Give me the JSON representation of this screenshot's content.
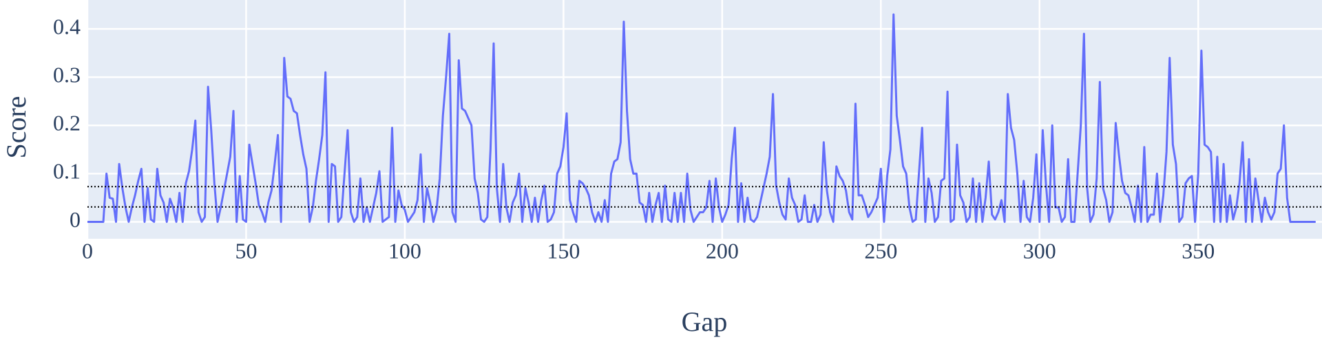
{
  "chart_data": {
    "type": "line",
    "x_label": "Gap",
    "y_label": "Score",
    "xlim": [
      0,
      389
    ],
    "ylim": [
      -0.035,
      0.46
    ],
    "xticks": [
      0,
      50,
      100,
      150,
      200,
      250,
      300,
      350
    ],
    "yticks": [
      0,
      0.1,
      0.2,
      0.3,
      0.4
    ],
    "grid": true,
    "hlines": [
      0.073,
      0.031
    ],
    "x": [
      0,
      1,
      2,
      3,
      4,
      5,
      6,
      7,
      8,
      9,
      10,
      11,
      12,
      13,
      14,
      15,
      16,
      17,
      18,
      19,
      20,
      21,
      22,
      23,
      24,
      25,
      26,
      27,
      28,
      29,
      30,
      31,
      32,
      33,
      34,
      35,
      36,
      37,
      38,
      39,
      40,
      41,
      42,
      43,
      44,
      45,
      46,
      47,
      48,
      49,
      50,
      51,
      52,
      53,
      54,
      55,
      56,
      57,
      58,
      59,
      60,
      61,
      62,
      63,
      64,
      65,
      66,
      67,
      68,
      69,
      70,
      71,
      72,
      73,
      74,
      75,
      76,
      77,
      78,
      79,
      80,
      81,
      82,
      83,
      84,
      85,
      86,
      87,
      88,
      89,
      90,
      91,
      92,
      93,
      94,
      95,
      96,
      97,
      98,
      99,
      100,
      101,
      102,
      103,
      104,
      105,
      106,
      107,
      108,
      109,
      110,
      111,
      112,
      113,
      114,
      115,
      116,
      117,
      118,
      119,
      120,
      121,
      122,
      123,
      124,
      125,
      126,
      127,
      128,
      129,
      130,
      131,
      132,
      133,
      134,
      135,
      136,
      137,
      138,
      139,
      140,
      141,
      142,
      143,
      144,
      145,
      146,
      147,
      148,
      149,
      150,
      151,
      152,
      153,
      154,
      155,
      156,
      157,
      158,
      159,
      160,
      161,
      162,
      163,
      164,
      165,
      166,
      167,
      168,
      169,
      170,
      171,
      172,
      173,
      174,
      175,
      176,
      177,
      178,
      179,
      180,
      181,
      182,
      183,
      184,
      185,
      186,
      187,
      188,
      189,
      190,
      191,
      192,
      193,
      194,
      195,
      196,
      197,
      198,
      199,
      200,
      201,
      202,
      203,
      204,
      205,
      206,
      207,
      208,
      209,
      210,
      211,
      212,
      213,
      214,
      215,
      216,
      217,
      218,
      219,
      220,
      221,
      222,
      223,
      224,
      225,
      226,
      227,
      228,
      229,
      230,
      231,
      232,
      233,
      234,
      235,
      236,
      237,
      238,
      239,
      240,
      241,
      242,
      243,
      244,
      245,
      246,
      247,
      248,
      249,
      250,
      251,
      252,
      253,
      254,
      255,
      256,
      257,
      258,
      259,
      260,
      261,
      262,
      263,
      264,
      265,
      266,
      267,
      268,
      269,
      270,
      271,
      272,
      273,
      274,
      275,
      276,
      277,
      278,
      279,
      280,
      281,
      282,
      283,
      284,
      285,
      286,
      287,
      288,
      289,
      290,
      291,
      292,
      293,
      294,
      295,
      296,
      297,
      298,
      299,
      300,
      301,
      302,
      303,
      304,
      305,
      306,
      307,
      308,
      309,
      310,
      311,
      312,
      313,
      314,
      315,
      316,
      317,
      318,
      319,
      320,
      321,
      322,
      323,
      324,
      325,
      326,
      327,
      328,
      329,
      330,
      331,
      332,
      333,
      334,
      335,
      336,
      337,
      338,
      339,
      340,
      341,
      342,
      343,
      344,
      345,
      346,
      347,
      348,
      349,
      350,
      351,
      352,
      353,
      354,
      355,
      356,
      357,
      358,
      359,
      360,
      361,
      362,
      363,
      364,
      365,
      366,
      367,
      368,
      369,
      370,
      371,
      372,
      373,
      374,
      375,
      376,
      377,
      378,
      379,
      380,
      381,
      382,
      383,
      384,
      385,
      386,
      387
    ],
    "series": [
      {
        "color": "#636efa",
        "values": [
          0,
          0,
          0,
          0,
          0,
          0,
          0.1,
          0.05,
          0.048,
          0,
          0.12,
          0.07,
          0.03,
          0,
          0.03,
          0.055,
          0.085,
          0.11,
          0,
          0.07,
          0.005,
          0,
          0.11,
          0.055,
          0.04,
          0,
          0.048,
          0.03,
          0,
          0.06,
          0,
          0.08,
          0.105,
          0.15,
          0.21,
          0.02,
          0,
          0.01,
          0.28,
          0.19,
          0.08,
          0,
          0.03,
          0.065,
          0.1,
          0.135,
          0.23,
          0,
          0.095,
          0.005,
          0,
          0.16,
          0.12,
          0.08,
          0.035,
          0.02,
          0,
          0.04,
          0.065,
          0.12,
          0.18,
          0,
          0.34,
          0.26,
          0.255,
          0.23,
          0.225,
          0.18,
          0.14,
          0.11,
          0,
          0.03,
          0.085,
          0.13,
          0.18,
          0.31,
          0,
          0.12,
          0.115,
          0,
          0.01,
          0.1,
          0.19,
          0.02,
          0,
          0.01,
          0.09,
          0,
          0.03,
          0,
          0.03,
          0.06,
          0.105,
          0,
          0.005,
          0.01,
          0.195,
          0,
          0.065,
          0.035,
          0.025,
          0,
          0.01,
          0.02,
          0.045,
          0.14,
          0,
          0.07,
          0.04,
          0,
          0.025,
          0.09,
          0.22,
          0.3,
          0.39,
          0.02,
          0,
          0.335,
          0.235,
          0.23,
          0.215,
          0.2,
          0.09,
          0.06,
          0.005,
          0,
          0.01,
          0.15,
          0.37,
          0.07,
          0,
          0.12,
          0.03,
          0,
          0.04,
          0.055,
          0.1,
          0,
          0.07,
          0.04,
          0,
          0.05,
          0,
          0.045,
          0.075,
          0,
          0.005,
          0.02,
          0.1,
          0.115,
          0.155,
          0.225,
          0.045,
          0.02,
          0,
          0.085,
          0.08,
          0.07,
          0.055,
          0.02,
          0,
          0.02,
          0,
          0.045,
          0,
          0.1,
          0.125,
          0.13,
          0.165,
          0.415,
          0.23,
          0.13,
          0.1,
          0.1,
          0.04,
          0.035,
          0,
          0.06,
          0,
          0.035,
          0.06,
          0,
          0.075,
          0.005,
          0,
          0.06,
          0,
          0.06,
          0,
          0.1,
          0.025,
          0,
          0.01,
          0.02,
          0.02,
          0.03,
          0.085,
          0,
          0.09,
          0.03,
          0,
          0.015,
          0.035,
          0.13,
          0.195,
          0,
          0.08,
          0,
          0.05,
          0.005,
          0,
          0.01,
          0.04,
          0.07,
          0.1,
          0.135,
          0.265,
          0.075,
          0.04,
          0.015,
          0.005,
          0.09,
          0.05,
          0.035,
          0,
          0.005,
          0.055,
          0,
          0,
          0.035,
          0,
          0.015,
          0.165,
          0.065,
          0.02,
          0,
          0.115,
          0.095,
          0.085,
          0.065,
          0.02,
          0.005,
          0.245,
          0.055,
          0.055,
          0.035,
          0.01,
          0.02,
          0.035,
          0.05,
          0.11,
          0,
          0.095,
          0.15,
          0.43,
          0.22,
          0.17,
          0.115,
          0.1,
          0.03,
          0,
          0.005,
          0.1,
          0.195,
          0,
          0.09,
          0.06,
          0,
          0.01,
          0.085,
          0.09,
          0.27,
          0,
          0.005,
          0.16,
          0.055,
          0.04,
          0,
          0.01,
          0.09,
          0,
          0.08,
          0,
          0.05,
          0.125,
          0.015,
          0.005,
          0.02,
          0.045,
          0,
          0.265,
          0.195,
          0.17,
          0.1,
          0,
          0.085,
          0.01,
          0,
          0.05,
          0.14,
          0,
          0.19,
          0.08,
          0,
          0.2,
          0.03,
          0.03,
          0,
          0.01,
          0.13,
          0,
          0,
          0.1,
          0.2,
          0.39,
          0.07,
          0,
          0.015,
          0.09,
          0.29,
          0.07,
          0.045,
          0,
          0.02,
          0.205,
          0.14,
          0.085,
          0.06,
          0.055,
          0.03,
          0,
          0.075,
          0,
          0.155,
          0,
          0.015,
          0.015,
          0.1,
          0,
          0.055,
          0.145,
          0.34,
          0.16,
          0.12,
          0,
          0.01,
          0.08,
          0.09,
          0.095,
          0,
          0.1,
          0.355,
          0.16,
          0.155,
          0.145,
          0,
          0.135,
          0,
          0.12,
          0,
          0.055,
          0.005,
          0.03,
          0.08,
          0.165,
          0,
          0.13,
          0,
          0.09,
          0.045,
          0,
          0.05,
          0.02,
          0.005,
          0.02,
          0.1,
          0.11,
          0.2,
          0.05,
          0,
          0,
          0,
          0,
          0,
          0,
          0,
          0,
          0
        ]
      }
    ]
  }
}
